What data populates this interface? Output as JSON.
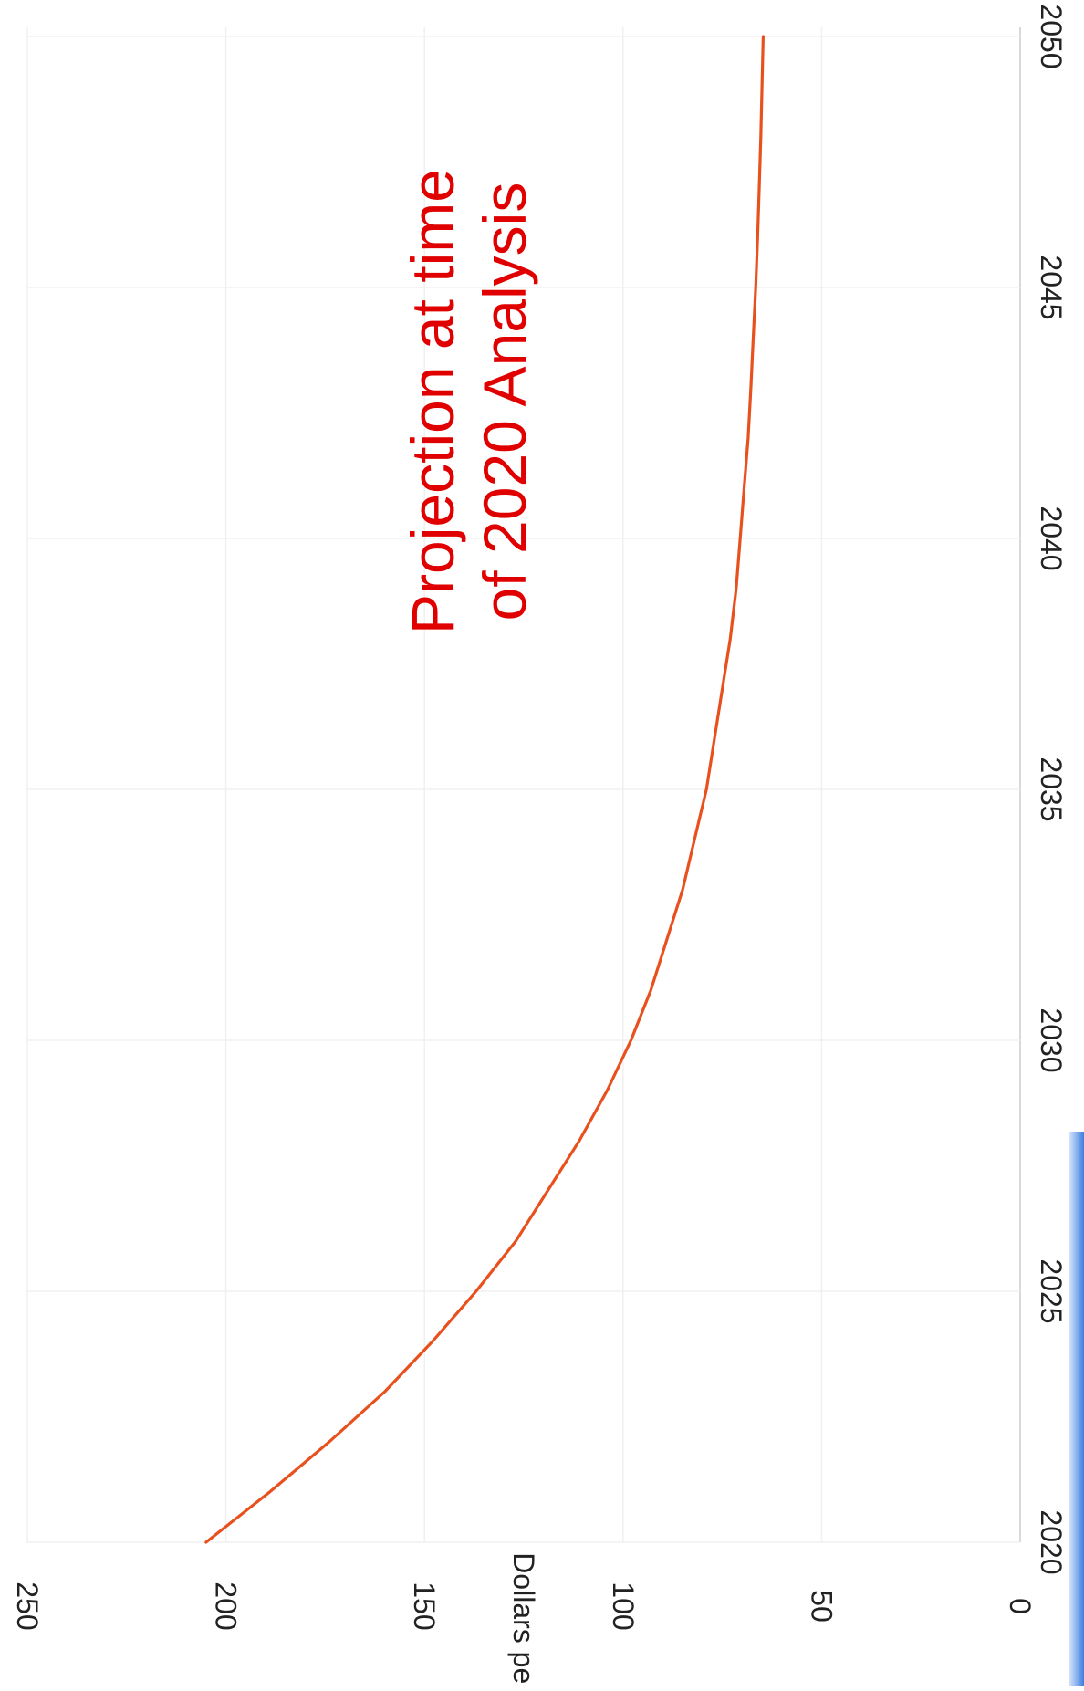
{
  "chart_data": {
    "type": "line",
    "title": "",
    "ylabel": "Dollars per kWh",
    "xlabel": "",
    "xlim": [
      2020,
      2050
    ],
    "ylim": [
      0,
      250
    ],
    "x_ticks": [
      "2020",
      "2025",
      "2030",
      "2035",
      "2040",
      "2045",
      "2050"
    ],
    "y_ticks": [
      "0",
      "50",
      "100",
      "150",
      "200",
      "250"
    ],
    "grid": true,
    "series": [
      {
        "color": "#e8511e",
        "x": [
          2020,
          2021,
          2022,
          2023,
          2024,
          2025,
          2026,
          2027,
          2028,
          2029,
          2030,
          2031,
          2032,
          2033,
          2034,
          2035,
          2036,
          2037,
          2038,
          2039,
          2040,
          2041,
          2042,
          2043,
          2044,
          2045,
          2046,
          2047,
          2048,
          2049,
          2050
        ],
        "y": [
          205,
          189,
          174,
          160,
          148,
          137,
          127,
          119,
          111,
          104,
          98,
          93,
          89,
          85,
          82,
          79,
          77,
          75,
          73,
          71.5,
          70.5,
          69.5,
          68.5,
          67.8,
          67.2,
          66.6,
          66.1,
          65.7,
          65.3,
          65.0,
          64.7
        ]
      }
    ],
    "annotations": [
      {
        "lines": [
          "Projection at time",
          "of 2020 Analysis"
        ],
        "color": "#e00000"
      }
    ]
  },
  "decoration": {
    "scan_edge_color": "#3c7fe0"
  }
}
